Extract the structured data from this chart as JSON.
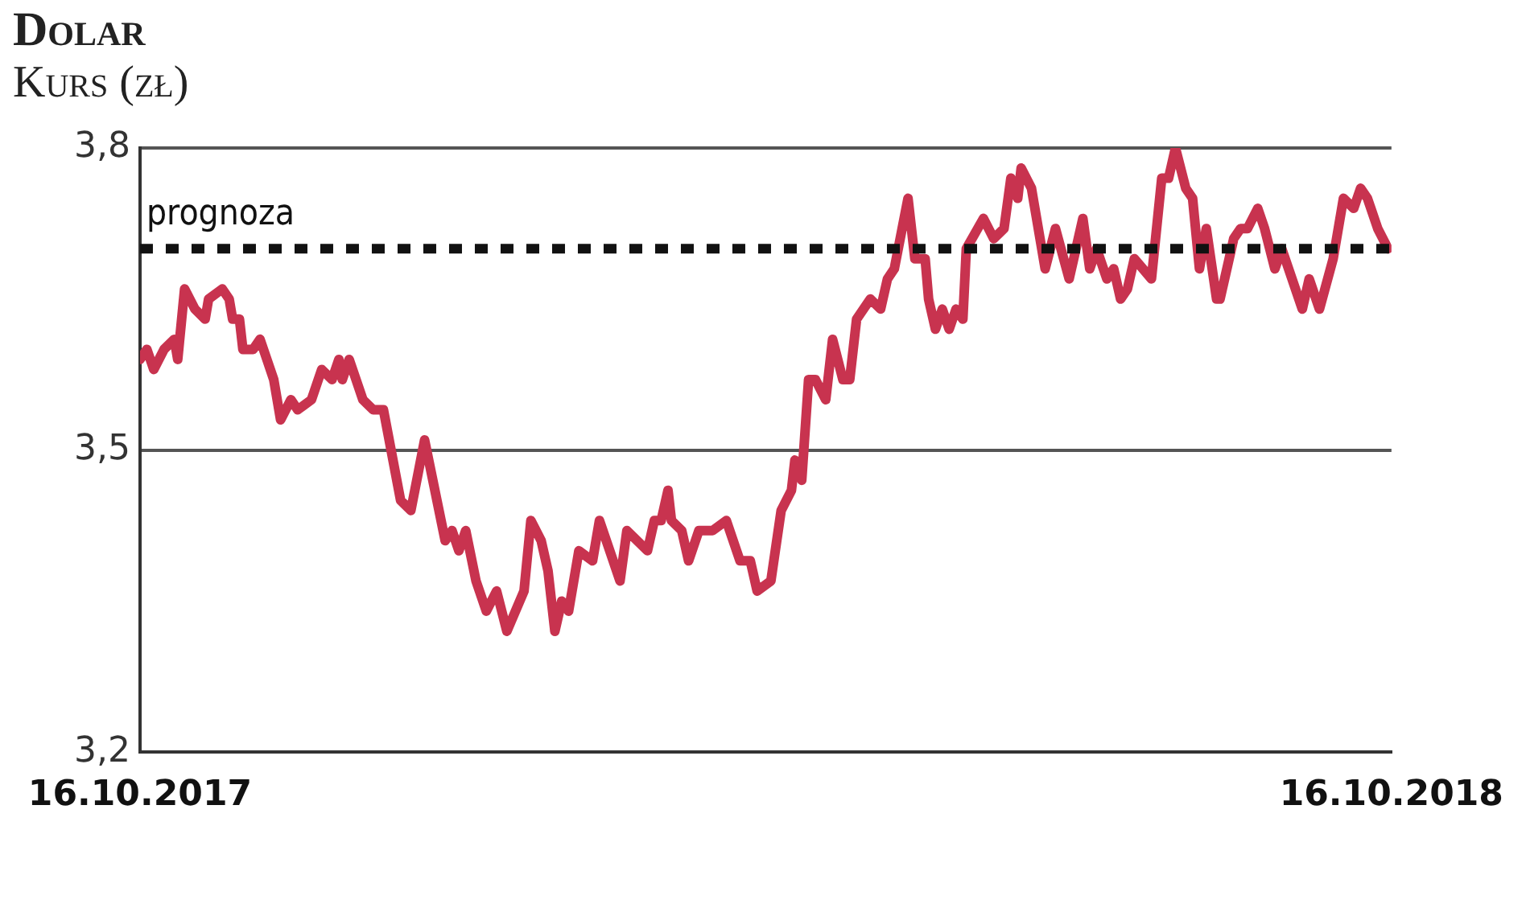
{
  "chart_data": {
    "type": "line",
    "title": "Dolar",
    "subtitle": "Kurs (zł)",
    "x": [
      "2017-10-16",
      "2017-10-18",
      "2017-10-20",
      "2017-10-23",
      "2017-10-26",
      "2017-10-27",
      "2017-10-29",
      "2017-11-01",
      "2017-11-04",
      "2017-11-05",
      "2017-11-09",
      "2017-11-11",
      "2017-11-12",
      "2017-11-14",
      "2017-11-15",
      "2017-11-18",
      "2017-11-20",
      "2017-11-22",
      "2017-11-24",
      "2017-11-26",
      "2017-11-29",
      "2017-12-01",
      "2017-12-05",
      "2017-12-08",
      "2017-12-11",
      "2017-12-13",
      "2017-12-14",
      "2017-12-16",
      "2017-12-20",
      "2017-12-23",
      "2017-12-26",
      "2017-12-31",
      "2018-01-03",
      "2018-01-07",
      "2018-01-13",
      "2018-01-15",
      "2018-01-17",
      "2018-01-19",
      "2018-01-22",
      "2018-01-25",
      "2018-01-28",
      "2018-01-31",
      "2018-02-05",
      "2018-02-07",
      "2018-02-10",
      "2018-02-12",
      "2018-02-14",
      "2018-02-16",
      "2018-02-18",
      "2018-02-21",
      "2018-02-25",
      "2018-02-27",
      "2018-03-02",
      "2018-03-05",
      "2018-03-07",
      "2018-03-13",
      "2018-03-15",
      "2018-03-17",
      "2018-03-19",
      "2018-03-20",
      "2018-03-23",
      "2018-03-25",
      "2018-03-28",
      "2018-04-01",
      "2018-04-05",
      "2018-04-09",
      "2018-04-12",
      "2018-04-14",
      "2018-04-18",
      "2018-04-21",
      "2018-04-24",
      "2018-04-25",
      "2018-04-27",
      "2018-04-29",
      "2018-05-01",
      "2018-05-04",
      "2018-05-06",
      "2018-05-09",
      "2018-05-11",
      "2018-05-13",
      "2018-05-17",
      "2018-05-20",
      "2018-05-22",
      "2018-05-24",
      "2018-05-28",
      "2018-05-30",
      "2018-06-02",
      "2018-06-03",
      "2018-06-05",
      "2018-06-07",
      "2018-06-09",
      "2018-06-11",
      "2018-06-13",
      "2018-06-14",
      "2018-06-19",
      "2018-06-22",
      "2018-06-25",
      "2018-06-27",
      "2018-06-29",
      "2018-06-30",
      "2018-07-03",
      "2018-07-07",
      "2018-07-10",
      "2018-07-14",
      "2018-07-18",
      "2018-07-20",
      "2018-07-22",
      "2018-07-25",
      "2018-07-27",
      "2018-07-29",
      "2018-07-31",
      "2018-08-02",
      "2018-08-07",
      "2018-08-10",
      "2018-08-12",
      "2018-08-14",
      "2018-08-17",
      "2018-08-19",
      "2018-08-21",
      "2018-08-23",
      "2018-08-26",
      "2018-08-27",
      "2018-08-31",
      "2018-09-02",
      "2018-09-04",
      "2018-09-07",
      "2018-09-09",
      "2018-09-12",
      "2018-09-14",
      "2018-09-16",
      "2018-09-20",
      "2018-09-22",
      "2018-09-25",
      "2018-09-29",
      "2018-10-02",
      "2018-10-05",
      "2018-10-07",
      "2018-10-09",
      "2018-10-12",
      "2018-10-15"
    ],
    "series": [
      {
        "color": "#c8334f",
        "values": [
          3.59,
          3.6,
          3.58,
          3.6,
          3.61,
          3.59,
          3.66,
          3.64,
          3.63,
          3.65,
          3.66,
          3.65,
          3.63,
          3.63,
          3.6,
          3.6,
          3.61,
          3.59,
          3.57,
          3.53,
          3.55,
          3.54,
          3.55,
          3.58,
          3.57,
          3.59,
          3.57,
          3.59,
          3.55,
          3.54,
          3.54,
          3.45,
          3.44,
          3.51,
          3.41,
          3.42,
          3.4,
          3.42,
          3.37,
          3.34,
          3.36,
          3.32,
          3.36,
          3.43,
          3.41,
          3.38,
          3.32,
          3.35,
          3.34,
          3.4,
          3.39,
          3.43,
          3.4,
          3.37,
          3.42,
          3.4,
          3.43,
          3.43,
          3.46,
          3.43,
          3.42,
          3.39,
          3.42,
          3.42,
          3.43,
          3.39,
          3.39,
          3.36,
          3.37,
          3.44,
          3.46,
          3.49,
          3.47,
          3.57,
          3.57,
          3.55,
          3.61,
          3.57,
          3.57,
          3.63,
          3.65,
          3.64,
          3.67,
          3.68,
          3.75,
          3.69,
          3.69,
          3.65,
          3.62,
          3.64,
          3.62,
          3.64,
          3.63,
          3.7,
          3.73,
          3.71,
          3.72,
          3.77,
          3.75,
          3.78,
          3.76,
          3.68,
          3.72,
          3.67,
          3.73,
          3.68,
          3.7,
          3.67,
          3.68,
          3.65,
          3.66,
          3.69,
          3.67,
          3.77,
          3.77,
          3.8,
          3.76,
          3.75,
          3.68,
          3.72,
          3.65,
          3.65,
          3.71,
          3.72,
          3.72,
          3.74,
          3.72,
          3.68,
          3.7,
          3.68,
          3.64,
          3.67,
          3.64,
          3.69,
          3.75,
          3.74,
          3.76,
          3.75,
          3.72,
          3.7
        ]
      }
    ],
    "xlim": [
      "2017-10-16",
      "2018-10-16"
    ],
    "xticks": [
      {
        "value": "2017-10-16",
        "label": "16.10.2017"
      },
      {
        "value": "2018-10-16",
        "label": "16.10.2018"
      }
    ],
    "ylim": [
      3.2,
      3.8
    ],
    "yticks": [
      {
        "value": 3.2,
        "label": "3,2"
      },
      {
        "value": 3.5,
        "label": "3,5"
      },
      {
        "value": 3.8,
        "label": "3,8"
      }
    ],
    "grid": "y",
    "legend": false,
    "marker": "none",
    "line_style": "solid",
    "ref_lines": [
      {
        "axis": "y",
        "value": 3.7,
        "label": "prognoza",
        "color": "#111111",
        "line_style": "dotted"
      }
    ]
  }
}
